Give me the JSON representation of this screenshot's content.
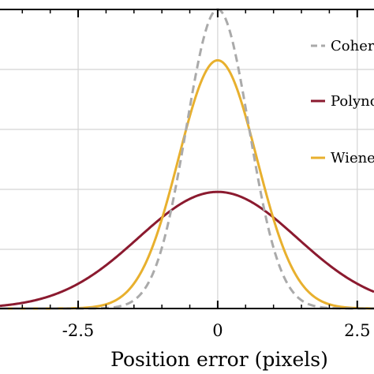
{
  "chart_data": {
    "type": "line",
    "xlabel": "Position error (pixels)",
    "ylabel": "",
    "xlim": [
      -3.9,
      2.8
    ],
    "ylim": [
      0,
      1.0
    ],
    "grid": true,
    "legend_position": "right",
    "x_ticks": [
      -2.5,
      0,
      2.5
    ],
    "x_tick_labels": [
      "-2.5",
      "0",
      "2.5"
    ],
    "series": [
      {
        "name": "Coherent",
        "color": "#aaaaaa",
        "dash": "dashed",
        "mean": 0,
        "sigma": 0.56,
        "peak": 1.0
      },
      {
        "name": "Polynomial",
        "color": "#8b1a2f",
        "dash": "solid",
        "mean": 0,
        "sigma": 1.42,
        "peak": 0.39
      },
      {
        "name": "Wiener",
        "color": "#e8b02e",
        "dash": "solid",
        "mean": 0,
        "sigma": 0.7,
        "peak": 0.83
      }
    ]
  }
}
